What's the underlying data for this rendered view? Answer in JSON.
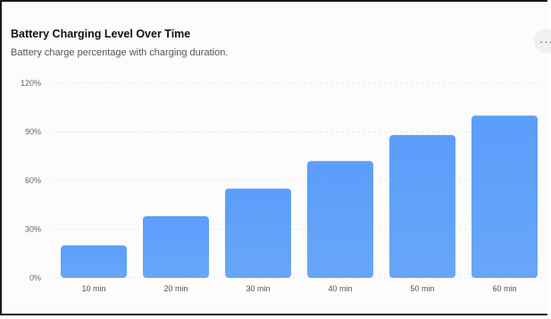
{
  "header": {
    "title": "Battery Charging Level Over Time",
    "subtitle": "Battery charge percentage with charging duration."
  },
  "menu_icon": "more-horizontal-icon",
  "colors": {
    "bar_top": "#5a9dfb",
    "bar_bottom": "#68a6f8",
    "grid": "#e6e8ee",
    "background": "#fcfcfc"
  },
  "chart_data": {
    "type": "bar",
    "title": "Battery Charging Level Over Time",
    "subtitle": "Battery charge percentage with charging duration.",
    "categories": [
      "10 min",
      "20 min",
      "30 min",
      "40 min",
      "50 min",
      "60 min"
    ],
    "values": [
      20,
      38,
      55,
      72,
      88,
      100
    ],
    "ylim": [
      0,
      120
    ],
    "yticks": [
      0,
      30,
      60,
      90,
      120
    ],
    "ytick_labels": [
      "0%",
      "30%",
      "60%",
      "90%",
      "120%"
    ],
    "grid": true,
    "legend": "none"
  }
}
